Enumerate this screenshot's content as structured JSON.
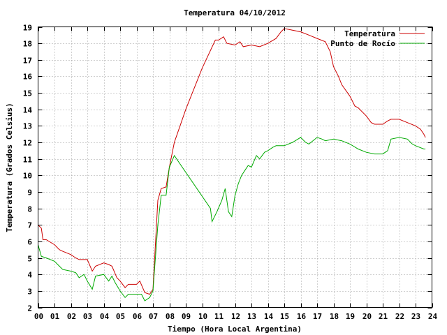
{
  "chart_data": {
    "type": "line",
    "title": "Temperatura 04/10/2012",
    "xlabel": "Tiempo (Hora Local Argentina)",
    "ylabel": "Temperatura (Grados Celsius)",
    "xlim": [
      0,
      24
    ],
    "ylim": [
      2,
      19
    ],
    "x_ticks": [
      "00",
      "01",
      "02",
      "03",
      "04",
      "05",
      "06",
      "07",
      "08",
      "09",
      "10",
      "11",
      "12",
      "13",
      "14",
      "15",
      "16",
      "17",
      "18",
      "19",
      "20",
      "21",
      "22",
      "23",
      "24"
    ],
    "y_ticks": [
      "2",
      "3",
      "4",
      "5",
      "6",
      "7",
      "8",
      "9",
      "10",
      "11",
      "12",
      "13",
      "14",
      "15",
      "16",
      "17",
      "18",
      "19"
    ],
    "grid": true,
    "legend_position": "top-right",
    "colors": {
      "temperatura": "#cc0000",
      "rocio": "#00aa00"
    },
    "series": [
      {
        "name": "Temperatura",
        "x": [
          0.0,
          0.2,
          0.3,
          0.5,
          1.0,
          1.3,
          1.5,
          2.0,
          2.3,
          2.5,
          3.0,
          3.3,
          3.5,
          4.0,
          4.3,
          4.5,
          4.8,
          5.0,
          5.3,
          5.5,
          6.0,
          6.2,
          6.5,
          6.8,
          7.0,
          7.3,
          7.5,
          7.8,
          8.0,
          8.3,
          9.0,
          10.0,
          10.8,
          11.0,
          11.3,
          11.5,
          12.0,
          12.3,
          12.5,
          13.0,
          13.5,
          14.0,
          14.5,
          14.8,
          15.0,
          15.5,
          16.0,
          16.5,
          17.0,
          17.5,
          17.8,
          18.0,
          18.3,
          18.5,
          19.0,
          19.3,
          19.5,
          20.0,
          20.3,
          20.5,
          21.0,
          21.3,
          21.5,
          22.0,
          22.5,
          23.0,
          23.3,
          23.5,
          23.6
        ],
        "values": [
          7.0,
          6.8,
          6.1,
          6.1,
          5.8,
          5.5,
          5.4,
          5.2,
          5.0,
          4.9,
          4.9,
          4.2,
          4.5,
          4.7,
          4.6,
          4.5,
          3.8,
          3.6,
          3.2,
          3.4,
          3.4,
          3.6,
          2.9,
          2.8,
          3.1,
          8.5,
          9.2,
          9.3,
          10.5,
          12.0,
          14.0,
          16.5,
          18.2,
          18.2,
          18.4,
          18.0,
          17.9,
          18.1,
          17.8,
          17.9,
          17.8,
          18.0,
          18.3,
          18.7,
          18.9,
          18.8,
          18.7,
          18.5,
          18.3,
          18.1,
          17.5,
          16.6,
          16.0,
          15.5,
          14.8,
          14.2,
          14.1,
          13.6,
          13.2,
          13.1,
          13.1,
          13.3,
          13.4,
          13.4,
          13.2,
          13.0,
          12.8,
          12.5,
          12.3
        ]
      },
      {
        "name": "Punto de Rocío",
        "x": [
          0.0,
          0.2,
          0.5,
          1.0,
          1.3,
          1.5,
          2.0,
          2.3,
          2.5,
          2.8,
          3.0,
          3.3,
          3.5,
          4.0,
          4.3,
          4.5,
          4.7,
          5.0,
          5.3,
          5.5,
          6.0,
          6.3,
          6.5,
          6.8,
          7.0,
          7.3,
          7.5,
          7.8,
          8.0,
          8.3,
          10.5,
          10.6,
          10.9,
          11.2,
          11.4,
          11.6,
          11.8,
          12.0,
          12.2,
          12.4,
          12.6,
          12.8,
          13.0,
          13.3,
          13.5,
          13.8,
          14.0,
          14.3,
          14.5,
          15.0,
          15.5,
          16.0,
          16.3,
          16.5,
          17.0,
          17.3,
          17.5,
          18.0,
          18.5,
          19.0,
          19.5,
          20.0,
          20.5,
          21.0,
          21.3,
          21.5,
          22.0,
          22.5,
          22.8,
          23.0,
          23.5,
          23.6
        ],
        "values": [
          5.8,
          5.1,
          5.0,
          4.8,
          4.5,
          4.3,
          4.2,
          4.1,
          3.8,
          4.0,
          3.6,
          3.1,
          3.9,
          4.0,
          3.6,
          3.9,
          3.5,
          3.0,
          2.6,
          2.8,
          2.8,
          2.8,
          2.4,
          2.6,
          3.0,
          7.0,
          8.8,
          8.8,
          10.5,
          11.2,
          8.0,
          7.2,
          7.8,
          8.5,
          9.2,
          7.8,
          7.5,
          8.8,
          9.5,
          10.0,
          10.3,
          10.6,
          10.5,
          11.2,
          11.0,
          11.4,
          11.5,
          11.7,
          11.8,
          11.8,
          12.0,
          12.3,
          12.0,
          11.9,
          12.3,
          12.2,
          12.1,
          12.2,
          12.1,
          11.9,
          11.6,
          11.4,
          11.3,
          11.3,
          11.5,
          12.2,
          12.3,
          12.2,
          11.9,
          11.8,
          11.6,
          11.6
        ]
      }
    ]
  }
}
